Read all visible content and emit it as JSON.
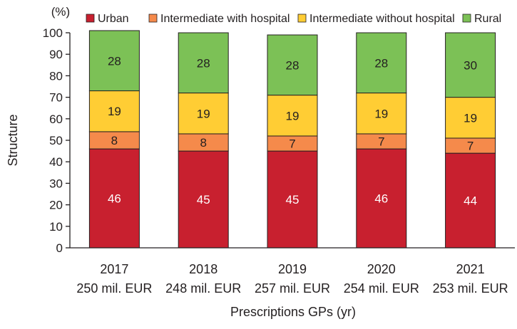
{
  "chart_data": {
    "type": "bar",
    "stacked": true,
    "unit_label": "(%)",
    "ylabel": "Structure",
    "xlabel": "Prescriptions GPs (yr)",
    "ylim": [
      0,
      100
    ],
    "yticks": [
      0,
      10,
      20,
      30,
      40,
      50,
      60,
      70,
      80,
      90,
      100
    ],
    "grid": false,
    "legend_position": "top",
    "categories": [
      {
        "year": "2017",
        "amount": "250 mil. EUR"
      },
      {
        "year": "2018",
        "amount": "248 mil. EUR"
      },
      {
        "year": "2019",
        "amount": "257 mil. EUR"
      },
      {
        "year": "2020",
        "amount": "254 mil. EUR"
      },
      {
        "year": "2021",
        "amount": "253 mil. EUR"
      }
    ],
    "series": [
      {
        "name": "Urban",
        "color": "#c8202f",
        "label_color": "#ffffff",
        "values": [
          46,
          45,
          45,
          46,
          44
        ]
      },
      {
        "name": "Intermediate with hospital",
        "color": "#f58a4b",
        "label_color": "#231f20",
        "values": [
          8,
          8,
          7,
          7,
          7
        ]
      },
      {
        "name": "Intermediate without hospital",
        "color": "#ffcd34",
        "label_color": "#231f20",
        "values": [
          19,
          19,
          19,
          19,
          19
        ]
      },
      {
        "name": "Rural",
        "color": "#7cc156",
        "label_color": "#231f20",
        "values": [
          28,
          28,
          28,
          28,
          30
        ]
      }
    ]
  }
}
